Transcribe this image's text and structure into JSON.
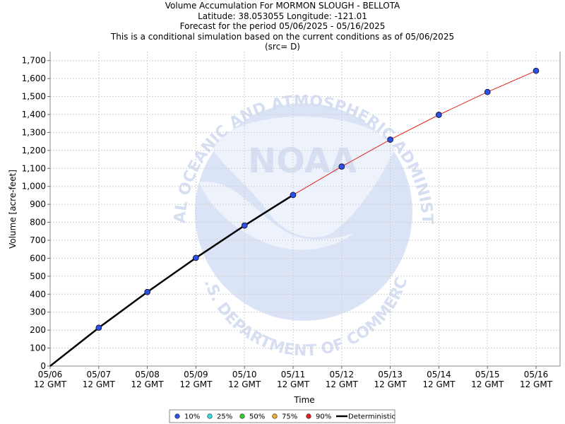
{
  "chart_data": {
    "type": "line",
    "title_lines": [
      "Volume Accumulation For MORMON SLOUGH - BELLOTA",
      "Latitude: 38.053055 Longitude: -121.01",
      "Forecast for the period 05/06/2025 - 05/16/2025",
      "This is a conditional simulation based on the current conditions as of 05/06/2025",
      "(src= D)"
    ],
    "xlabel": "Time",
    "ylabel": "Volume [acre-feet]",
    "ylim": [
      0,
      1750
    ],
    "yticks": [
      0,
      100,
      200,
      300,
      400,
      500,
      600,
      700,
      800,
      900,
      1000,
      1100,
      1200,
      1300,
      1400,
      1500,
      1600,
      1700
    ],
    "ytick_labels": [
      "0",
      "100",
      "200",
      "300",
      "400",
      "500",
      "600",
      "700",
      "800",
      "900",
      "1,000",
      "1,100",
      "1,200",
      "1,300",
      "1,400",
      "1,500",
      "1,600",
      "1,700"
    ],
    "x_categories": [
      "05/06",
      "05/07",
      "05/08",
      "05/09",
      "05/10",
      "05/11",
      "05/12",
      "05/13",
      "05/14",
      "05/15",
      "05/16"
    ],
    "x_sublabel": "12 GMT",
    "grid": true,
    "legend_position": "bottom",
    "deterministic": {
      "name": "Deterministic",
      "color": "#000000",
      "x": [
        "05/06",
        "05/07",
        "05/08",
        "05/09",
        "05/10",
        "05/11"
      ],
      "values": [
        0,
        213,
        412,
        602,
        782,
        952
      ]
    },
    "series": [
      {
        "name": "10%",
        "color": "#2a52e8",
        "values": [
          null,
          213,
          412,
          602,
          782,
          952,
          1110,
          1260,
          1398,
          1525,
          1643
        ]
      },
      {
        "name": "25%",
        "color": "#33e0e0",
        "values": [
          null,
          213,
          412,
          602,
          782,
          952,
          1110,
          1260,
          1398,
          1525,
          1643
        ]
      },
      {
        "name": "50%",
        "color": "#33cc33",
        "values": [
          null,
          213,
          412,
          602,
          782,
          952,
          1110,
          1260,
          1398,
          1525,
          1643
        ]
      },
      {
        "name": "75%",
        "color": "#f0b030",
        "values": [
          null,
          213,
          412,
          602,
          782,
          952,
          1110,
          1260,
          1398,
          1525,
          1643
        ]
      },
      {
        "name": "90%",
        "color": "#e02020",
        "values": [
          null,
          213,
          412,
          602,
          782,
          952,
          1110,
          1260,
          1398,
          1525,
          1643
        ]
      }
    ],
    "forecast_line_color": "#e02020",
    "watermark": {
      "logo_text": "NOAA",
      "ring_text_top": "NATIONAL OCEANIC AND ATMOSPHERIC ADMINISTRATION",
      "ring_text_bottom": "U.S. DEPARTMENT OF COMMERCE"
    }
  }
}
